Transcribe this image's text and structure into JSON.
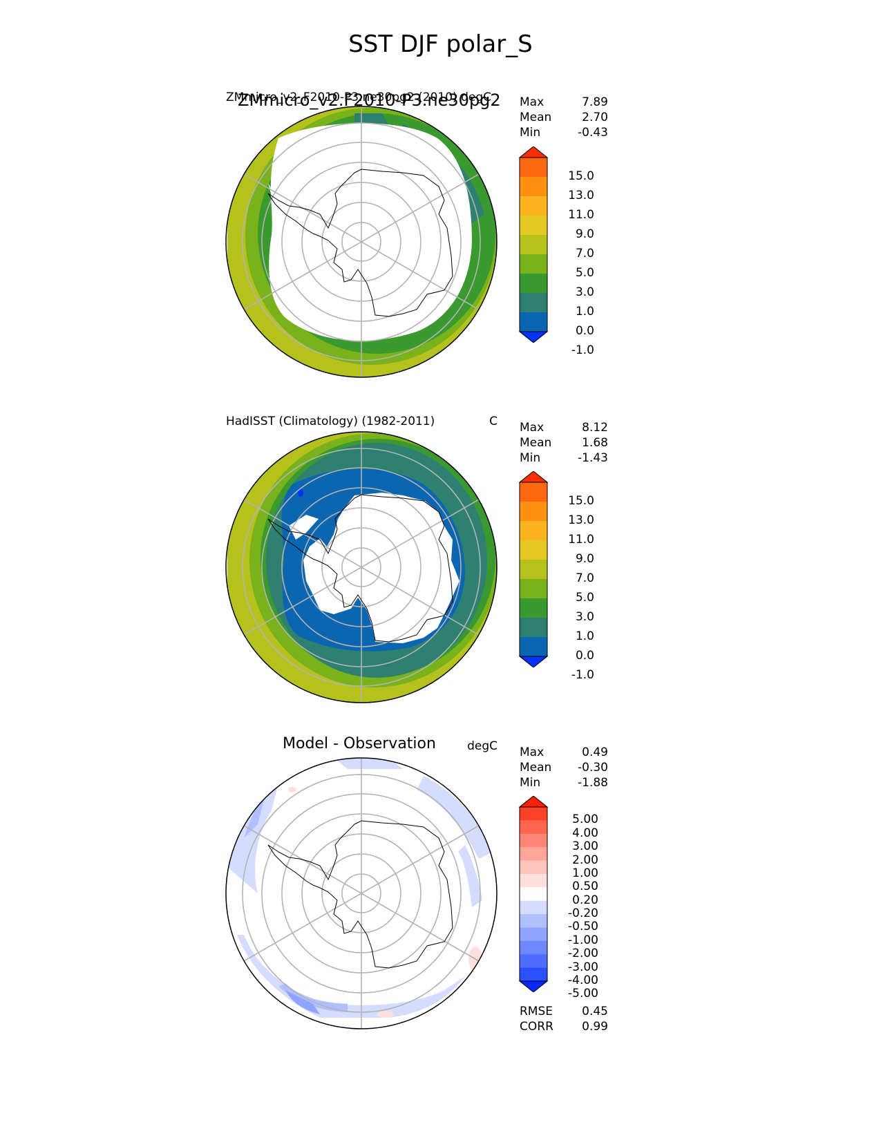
{
  "title": "SST DJF polar_S",
  "panels": [
    {
      "id": "model",
      "title_primary": "ZMmicro_v2.F2010-P3.ne30pg2",
      "title_overlay": "ZMmicro_v2_F2010-P3.ne30pg2 (2010) degC",
      "units": "",
      "stats": [
        {
          "label": "Max",
          "value": "7.89"
        },
        {
          "label": "Mean",
          "value": "2.70"
        },
        {
          "label": "Min",
          "value": "-0.43"
        }
      ],
      "colorbar": {
        "levels": [
          "15.0",
          "13.0",
          "11.0",
          "9.0",
          "7.0",
          "5.0",
          "3.0",
          "1.0",
          "0.0",
          "-1.0"
        ],
        "colors": [
          "#0033ff",
          "#0a66b0",
          "#2e8070",
          "#3a9a30",
          "#79b21a",
          "#b5c21e",
          "#e6c822",
          "#fcb320",
          "#fd9010",
          "#fc6810",
          "#fc2e05"
        ]
      }
    },
    {
      "id": "obs",
      "title_primary": "HadISST (Climatology) (1982-2011)",
      "units": "C",
      "stats": [
        {
          "label": "Max",
          "value": "8.12"
        },
        {
          "label": "Mean",
          "value": "1.68"
        },
        {
          "label": "Min",
          "value": "-1.43"
        }
      ],
      "colorbar": {
        "levels": [
          "15.0",
          "13.0",
          "11.0",
          "9.0",
          "7.0",
          "5.0",
          "3.0",
          "1.0",
          "0.0",
          "-1.0"
        ],
        "colors": [
          "#0033ff",
          "#0a66b0",
          "#2e8070",
          "#3a9a30",
          "#79b21a",
          "#b5c21e",
          "#e6c822",
          "#fcb320",
          "#fd9010",
          "#fc6810",
          "#fc2e05"
        ]
      }
    },
    {
      "id": "diff",
      "title_primary": "Model - Observation",
      "units": "degC",
      "stats": [
        {
          "label": "Max",
          "value": "0.49"
        },
        {
          "label": "Mean",
          "value": "-0.30"
        },
        {
          "label": "Min",
          "value": "-1.88"
        }
      ],
      "colorbar": {
        "levels": [
          "5.00",
          "4.00",
          "3.00",
          "2.00",
          "1.00",
          "0.50",
          "0.20",
          "-0.20",
          "-0.50",
          "-1.00",
          "-2.00",
          "-3.00",
          "-4.00",
          "-5.00"
        ],
        "colors": [
          "#0028ff",
          "#2a50ff",
          "#4e6cff",
          "#6e88ff",
          "#8fa3ff",
          "#b0bfff",
          "#d4dcff",
          "#ffffff",
          "#ffe0dc",
          "#ffc4bc",
          "#ffa69a",
          "#ff8674",
          "#ff6650",
          "#ff4128",
          "#ff2000"
        ]
      },
      "metrics": [
        {
          "label": "RMSE",
          "value": "0.45"
        },
        {
          "label": "CORR",
          "value": "0.99"
        }
      ]
    }
  ],
  "colors": {
    "land": "#ffffff",
    "coast": "#000000",
    "grid": "#b3b3b3",
    "sea_ice": "#ffffff"
  }
}
